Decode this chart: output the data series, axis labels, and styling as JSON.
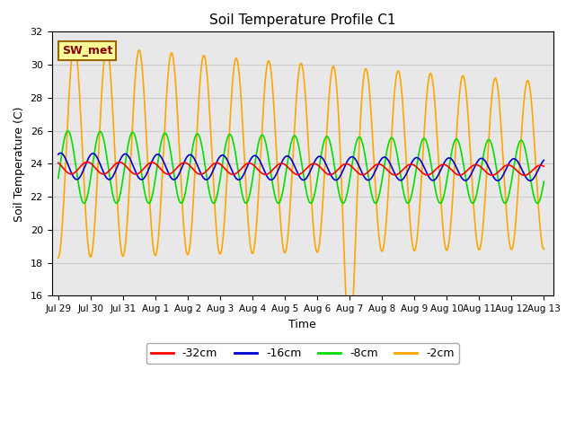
{
  "title": "Soil Temperature Profile C1",
  "xlabel": "Time",
  "ylabel": "Soil Temperature (C)",
  "ylim": [
    16,
    32
  ],
  "bg_color": "#e8e8e8",
  "fig_color": "#ffffff",
  "annotation_text": "SW_met",
  "annotation_color": "#8b0000",
  "annotation_bg": "#ffff99",
  "annotation_border": "#996600",
  "series": {
    "-32cm": {
      "color": "#ff0000",
      "linewidth": 1.2
    },
    "-16cm": {
      "color": "#0000cc",
      "linewidth": 1.2
    },
    "-8cm": {
      "color": "#00dd00",
      "linewidth": 1.2
    },
    "-2cm": {
      "color": "#ffa500",
      "linewidth": 1.2
    }
  },
  "xtick_labels": [
    "Jul 29",
    "Jul 30",
    "Jul 31",
    "Aug 1",
    "Aug 2",
    "Aug 3",
    "Aug 4",
    "Aug 5",
    "Aug 6",
    "Aug 7",
    "Aug 8",
    "Aug 9",
    "Aug 10",
    "Aug 11",
    "Aug 12",
    "Aug 13"
  ],
  "xtick_positions": [
    0,
    1,
    2,
    3,
    4,
    5,
    6,
    7,
    8,
    9,
    10,
    11,
    12,
    13,
    14,
    15
  ],
  "ytick_positions": [
    16,
    18,
    20,
    22,
    24,
    26,
    28,
    30,
    32
  ],
  "grid_color": "#cccccc",
  "legend_entries": [
    "-32cm",
    "-16cm",
    "-8cm",
    "-2cm"
  ],
  "legend_colors": [
    "#ff0000",
    "#0000cc",
    "#00dd00",
    "#ffa500"
  ]
}
